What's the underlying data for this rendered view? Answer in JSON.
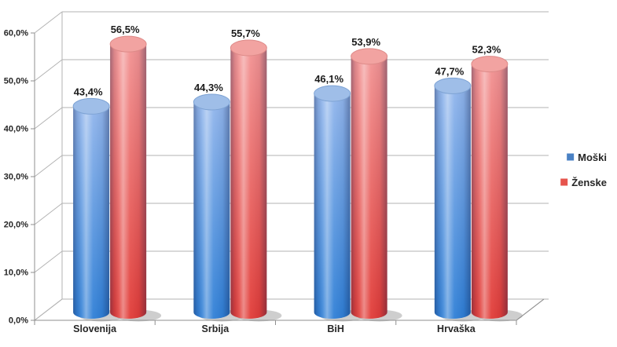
{
  "chart_data": {
    "type": "bar",
    "style": "3d-cylinder",
    "title": "",
    "categories": [
      "Slovenija",
      "Srbija",
      "BiH",
      "Hrvaška"
    ],
    "series": [
      {
        "name": "Moški",
        "values": [
          43.4,
          44.3,
          46.1,
          47.7
        ],
        "data_labels": [
          "43,4%",
          "44,3%",
          "46,1%",
          "47,7%"
        ],
        "color_top": "#92b6ec",
        "color_bottom": "#2f7fd6",
        "top_face": "#9fbee8",
        "top_rim": "#7ea3d4",
        "legend_color": "#4a81c4"
      },
      {
        "name": "Ženske",
        "values": [
          56.5,
          55.7,
          53.9,
          52.3
        ],
        "data_labels": [
          "56,5%",
          "55,7%",
          "53,9%",
          "52,3%"
        ],
        "color_top": "#f29393",
        "color_bottom": "#e13b37",
        "top_face": "#f2a3a1",
        "top_rim": "#dd8a88",
        "legend_color": "#e6544d"
      }
    ],
    "y_axis": {
      "min": 0,
      "max": 60,
      "step": 10,
      "tick_labels": [
        "0,0%",
        "10,0%",
        "20,0%",
        "30,0%",
        "40,0%",
        "50,0%",
        "60,0%"
      ]
    },
    "legend": {
      "position": "right",
      "entries": [
        "Moški",
        "Ženske"
      ]
    },
    "grid": true,
    "colors": {
      "background": "#ffffff",
      "gridline": "#b3b3b3",
      "axis": "#8f8f8f",
      "floor_fill": "#ffffff",
      "floor_stroke": "#a6a6a6",
      "label_text": "#1a1a1a",
      "tick_text": "#262626",
      "shadow": "#8c8c8c"
    }
  }
}
